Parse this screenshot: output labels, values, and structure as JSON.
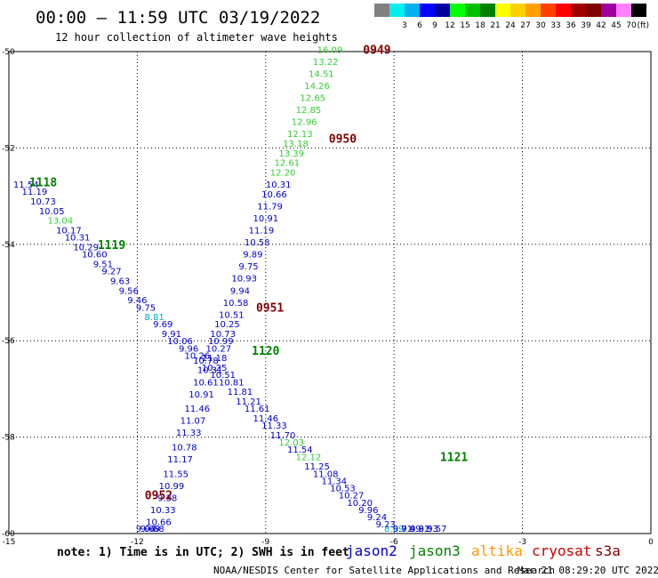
{
  "header": {
    "title": "00:00 – 11:59 UTC 03/19/2022",
    "subtitle": "12 hour collection of altimeter wave heights"
  },
  "legend": {
    "unit": "(ft)",
    "bins": [
      {
        "label": "",
        "color": "#808080"
      },
      {
        "label": "3",
        "color": "#00f0f0"
      },
      {
        "label": "6",
        "color": "#00b0f0"
      },
      {
        "label": "9",
        "color": "#0000ff"
      },
      {
        "label": "12",
        "color": "#0000a0"
      },
      {
        "label": "15",
        "color": "#00ff00"
      },
      {
        "label": "18",
        "color": "#00c000"
      },
      {
        "label": "21",
        "color": "#008000"
      },
      {
        "label": "24",
        "color": "#ffff00"
      },
      {
        "label": "27",
        "color": "#ffd000"
      },
      {
        "label": "30",
        "color": "#ffa000"
      },
      {
        "label": "33",
        "color": "#ff4000"
      },
      {
        "label": "36",
        "color": "#ff0000"
      },
      {
        "label": "39",
        "color": "#a00000"
      },
      {
        "label": "42",
        "color": "#800000"
      },
      {
        "label": "45",
        "color": "#a000a0"
      },
      {
        "label": "70",
        "color": "#ff80ff"
      },
      {
        "label": "",
        "color": "#000000"
      }
    ]
  },
  "footer": {
    "note": "note: 1) Time is in UTC; 2) SWH is in feet",
    "credit": "NOAA/NESDIS Center for Satellite Applications and Research",
    "timestamp": "Mar 21 08:29:20 UTC 2022",
    "satellites": [
      {
        "name": "jason2",
        "color": "#0000cc"
      },
      {
        "name": "jason3",
        "color": "#008000"
      },
      {
        "name": "altika",
        "color": "#ff9900"
      },
      {
        "name": "cryosat",
        "color": "#cc0000"
      },
      {
        "name": "s3a",
        "color": "#800000"
      }
    ]
  },
  "chart_data": {
    "type": "scatter",
    "xlim": [
      -15,
      0
    ],
    "ylim": [
      -60,
      -50
    ],
    "x_ticks": [
      "-15",
      "-12",
      "-9",
      "-6",
      "-3",
      "0"
    ],
    "y_ticks": [
      "-50",
      "-52",
      "-54",
      "-56",
      "-58",
      "-60"
    ],
    "grid": true,
    "time_labels": [
      {
        "text": "0949",
        "x": -6.4,
        "y": -49.95,
        "color": "#800000"
      },
      {
        "text": "0950",
        "x": -7.2,
        "y": -51.8,
        "color": "#800000"
      },
      {
        "text": "0951",
        "x": -8.9,
        "y": -55.3,
        "color": "#800000"
      },
      {
        "text": "0952",
        "x": -11.5,
        "y": -59.2,
        "color": "#800000"
      },
      {
        "text": "1118",
        "x": -14.2,
        "y": -52.7,
        "color": "#008000"
      },
      {
        "text": "1119",
        "x": -12.6,
        "y": -54.0,
        "color": "#008000"
      },
      {
        "text": "1120",
        "x": -9.0,
        "y": -56.2,
        "color": "#008000"
      },
      {
        "text": "1121",
        "x": -4.6,
        "y": -58.4,
        "color": "#008000"
      }
    ],
    "tracks": [
      {
        "name": "0949-0952",
        "points": [
          {
            "x": -7.5,
            "y": -49.95,
            "v": "16.09",
            "c": "#33cc33"
          },
          {
            "x": -7.6,
            "y": -50.2,
            "v": "13.22",
            "c": "#33cc33"
          },
          {
            "x": -7.7,
            "y": -50.45,
            "v": "14.51",
            "c": "#33cc33"
          },
          {
            "x": -7.8,
            "y": -50.7,
            "v": "14.26",
            "c": "#33cc33"
          },
          {
            "x": -7.9,
            "y": -50.95,
            "v": "12.65",
            "c": "#33cc33"
          },
          {
            "x": -8.0,
            "y": -51.2,
            "v": "12.85",
            "c": "#33cc33"
          },
          {
            "x": -8.1,
            "y": -51.45,
            "v": "12.96",
            "c": "#33cc33"
          },
          {
            "x": -8.2,
            "y": -51.7,
            "v": "12.13",
            "c": "#33cc33"
          },
          {
            "x": -8.3,
            "y": -51.9,
            "v": "13.18",
            "c": "#33cc33"
          },
          {
            "x": -8.4,
            "y": -52.1,
            "v": "13.39",
            "c": "#33cc33"
          },
          {
            "x": -8.5,
            "y": -52.3,
            "v": "12.61",
            "c": "#33cc33"
          },
          {
            "x": -8.6,
            "y": -52.5,
            "v": "12.20",
            "c": "#33cc33"
          },
          {
            "x": -8.7,
            "y": -52.75,
            "v": "10.31",
            "c": "#0000cc"
          },
          {
            "x": -8.8,
            "y": -52.95,
            "v": "10.66",
            "c": "#0000cc"
          },
          {
            "x": -8.9,
            "y": -53.2,
            "v": "11.79",
            "c": "#0000cc"
          },
          {
            "x": -9.0,
            "y": -53.45,
            "v": "10.91",
            "c": "#0000cc"
          },
          {
            "x": -9.1,
            "y": -53.7,
            "v": "11.19",
            "c": "#0000cc"
          },
          {
            "x": -9.2,
            "y": -53.95,
            "v": "10.58",
            "c": "#0000cc"
          },
          {
            "x": -9.3,
            "y": -54.2,
            "v": "9.89",
            "c": "#0000cc"
          },
          {
            "x": -9.4,
            "y": -54.45,
            "v": "9.75",
            "c": "#0000cc"
          },
          {
            "x": -9.5,
            "y": -54.7,
            "v": "10.93",
            "c": "#0000cc"
          },
          {
            "x": -9.6,
            "y": -54.95,
            "v": "9.94",
            "c": "#0000cc"
          },
          {
            "x": -9.7,
            "y": -55.2,
            "v": "10.58",
            "c": "#0000cc"
          },
          {
            "x": -9.8,
            "y": -55.45,
            "v": "10.51",
            "c": "#0000cc"
          },
          {
            "x": -9.9,
            "y": -55.65,
            "v": "10.25",
            "c": "#0000cc"
          },
          {
            "x": -10.0,
            "y": -55.85,
            "v": "10.73",
            "c": "#0000cc"
          },
          {
            "x": -10.05,
            "y": -56.0,
            "v": "10.99",
            "c": "#0000cc"
          },
          {
            "x": -10.1,
            "y": -56.15,
            "v": "10.27",
            "c": "#0000cc"
          },
          {
            "x": -10.2,
            "y": -56.35,
            "v": "11.18",
            "c": "#0000cc"
          },
          {
            "x": -10.3,
            "y": -56.6,
            "v": "10.31",
            "c": "#0000cc"
          },
          {
            "x": -10.4,
            "y": -56.85,
            "v": "10.61",
            "c": "#0000cc"
          },
          {
            "x": -10.5,
            "y": -57.1,
            "v": "10.91",
            "c": "#0000cc"
          },
          {
            "x": -10.6,
            "y": -57.4,
            "v": "11.46",
            "c": "#0000cc"
          },
          {
            "x": -10.7,
            "y": -57.65,
            "v": "11.07",
            "c": "#0000cc"
          },
          {
            "x": -10.8,
            "y": -57.9,
            "v": "11.33",
            "c": "#0000cc"
          },
          {
            "x": -10.9,
            "y": -58.2,
            "v": "10.78",
            "c": "#0000cc"
          },
          {
            "x": -11.0,
            "y": -58.45,
            "v": "11.17",
            "c": "#0000cc"
          },
          {
            "x": -11.1,
            "y": -58.75,
            "v": "11.55",
            "c": "#0000cc"
          },
          {
            "x": -11.2,
            "y": -59.0,
            "v": "10.99",
            "c": "#0000cc"
          },
          {
            "x": -11.3,
            "y": -59.25,
            "v": "9.38",
            "c": "#0000cc"
          },
          {
            "x": -11.4,
            "y": -59.5,
            "v": "10.33",
            "c": "#0000cc"
          },
          {
            "x": -11.5,
            "y": -59.75,
            "v": "10.66",
            "c": "#0000cc"
          },
          {
            "x": -11.6,
            "y": -59.95,
            "v": "9.68",
            "c": "#0000cc"
          },
          {
            "x": -11.7,
            "y": -60.15,
            "v": "9.69",
            "c": "#0000cc"
          },
          {
            "x": -11.8,
            "y": -60.4,
            "v": "9.04",
            "c": "#0000cc"
          }
        ]
      },
      {
        "name": "1118-1121",
        "points": [
          {
            "x": -14.6,
            "y": -52.75,
            "v": "11.54",
            "c": "#0000cc"
          },
          {
            "x": -14.4,
            "y": -52.9,
            "v": "11.19",
            "c": "#0000cc"
          },
          {
            "x": -14.2,
            "y": -53.1,
            "v": "10.73",
            "c": "#0000cc"
          },
          {
            "x": -14.0,
            "y": -53.3,
            "v": "10.05",
            "c": "#0000cc"
          },
          {
            "x": -13.8,
            "y": -53.5,
            "v": "13.04",
            "c": "#33cc33"
          },
          {
            "x": -13.6,
            "y": -53.7,
            "v": "10.17",
            "c": "#0000cc"
          },
          {
            "x": -13.4,
            "y": -53.85,
            "v": "10.31",
            "c": "#0000cc"
          },
          {
            "x": -13.2,
            "y": -54.05,
            "v": "10.29",
            "c": "#0000cc"
          },
          {
            "x": -13.0,
            "y": -54.2,
            "v": "10.60",
            "c": "#0000cc"
          },
          {
            "x": -12.8,
            "y": -54.4,
            "v": "9.51",
            "c": "#0000cc"
          },
          {
            "x": -12.6,
            "y": -54.55,
            "v": "9.27",
            "c": "#0000cc"
          },
          {
            "x": -12.4,
            "y": -54.75,
            "v": "9.63",
            "c": "#0000cc"
          },
          {
            "x": -12.2,
            "y": -54.95,
            "v": "9.56",
            "c": "#0000cc"
          },
          {
            "x": -12.0,
            "y": -55.15,
            "v": "9.46",
            "c": "#0000cc"
          },
          {
            "x": -11.8,
            "y": -55.3,
            "v": "9.75",
            "c": "#0000cc"
          },
          {
            "x": -11.6,
            "y": -55.5,
            "v": "8.81",
            "c": "#00aabb"
          },
          {
            "x": -11.4,
            "y": -55.65,
            "v": "9.69",
            "c": "#0000cc"
          },
          {
            "x": -11.2,
            "y": -55.85,
            "v": "9.91",
            "c": "#0000cc"
          },
          {
            "x": -11.0,
            "y": -56.0,
            "v": "10.06",
            "c": "#0000cc"
          },
          {
            "x": -10.8,
            "y": -56.15,
            "v": "9.96",
            "c": "#0000cc"
          },
          {
            "x": -10.6,
            "y": -56.3,
            "v": "10.26",
            "c": "#0000cc"
          },
          {
            "x": -10.4,
            "y": -56.4,
            "v": "10.78",
            "c": "#0000cc"
          },
          {
            "x": -10.2,
            "y": -56.55,
            "v": "10.25",
            "c": "#0000cc"
          },
          {
            "x": -10.0,
            "y": -56.7,
            "v": "10.51",
            "c": "#0000cc"
          },
          {
            "x": -9.8,
            "y": -56.85,
            "v": "10.81",
            "c": "#0000cc"
          },
          {
            "x": -9.6,
            "y": -57.05,
            "v": "11.81",
            "c": "#0000cc"
          },
          {
            "x": -9.4,
            "y": -57.25,
            "v": "11.21",
            "c": "#0000cc"
          },
          {
            "x": -9.2,
            "y": -57.4,
            "v": "11.61",
            "c": "#0000cc"
          },
          {
            "x": -9.0,
            "y": -57.6,
            "v": "11.46",
            "c": "#0000cc"
          },
          {
            "x": -8.8,
            "y": -57.75,
            "v": "11.33",
            "c": "#0000cc"
          },
          {
            "x": -8.6,
            "y": -57.95,
            "v": "11.70",
            "c": "#0000cc"
          },
          {
            "x": -8.4,
            "y": -58.1,
            "v": "12.03",
            "c": "#33cc33"
          },
          {
            "x": -8.2,
            "y": -58.25,
            "v": "11.54",
            "c": "#0000cc"
          },
          {
            "x": -8.0,
            "y": -58.4,
            "v": "12.12",
            "c": "#33cc33"
          },
          {
            "x": -7.8,
            "y": -58.6,
            "v": "11.25",
            "c": "#0000cc"
          },
          {
            "x": -7.6,
            "y": -58.75,
            "v": "11.08",
            "c": "#0000cc"
          },
          {
            "x": -7.4,
            "y": -58.9,
            "v": "11.34",
            "c": "#0000cc"
          },
          {
            "x": -7.2,
            "y": -59.05,
            "v": "10.53",
            "c": "#0000cc"
          },
          {
            "x": -7.0,
            "y": -59.2,
            "v": "10.27",
            "c": "#0000cc"
          },
          {
            "x": -6.8,
            "y": -59.35,
            "v": "10.20",
            "c": "#0000cc"
          },
          {
            "x": -6.6,
            "y": -59.5,
            "v": "9.96",
            "c": "#0000cc"
          },
          {
            "x": -6.4,
            "y": -59.65,
            "v": "9.24",
            "c": "#0000cc"
          },
          {
            "x": -6.2,
            "y": -59.8,
            "v": "9.23",
            "c": "#0000cc"
          },
          {
            "x": -6.0,
            "y": -59.95,
            "v": "8.69",
            "c": "#00aabb"
          },
          {
            "x": -5.8,
            "y": -60.1,
            "v": "9.71",
            "c": "#0000cc"
          },
          {
            "x": -5.6,
            "y": -60.25,
            "v": "9.49",
            "c": "#0000cc"
          },
          {
            "x": -5.4,
            "y": -60.4,
            "v": "9.81",
            "c": "#0000cc"
          },
          {
            "x": -5.2,
            "y": -60.55,
            "v": "9.53",
            "c": "#0000cc"
          },
          {
            "x": -5.0,
            "y": -60.7,
            "v": "9.57",
            "c": "#0000cc"
          }
        ]
      }
    ]
  }
}
